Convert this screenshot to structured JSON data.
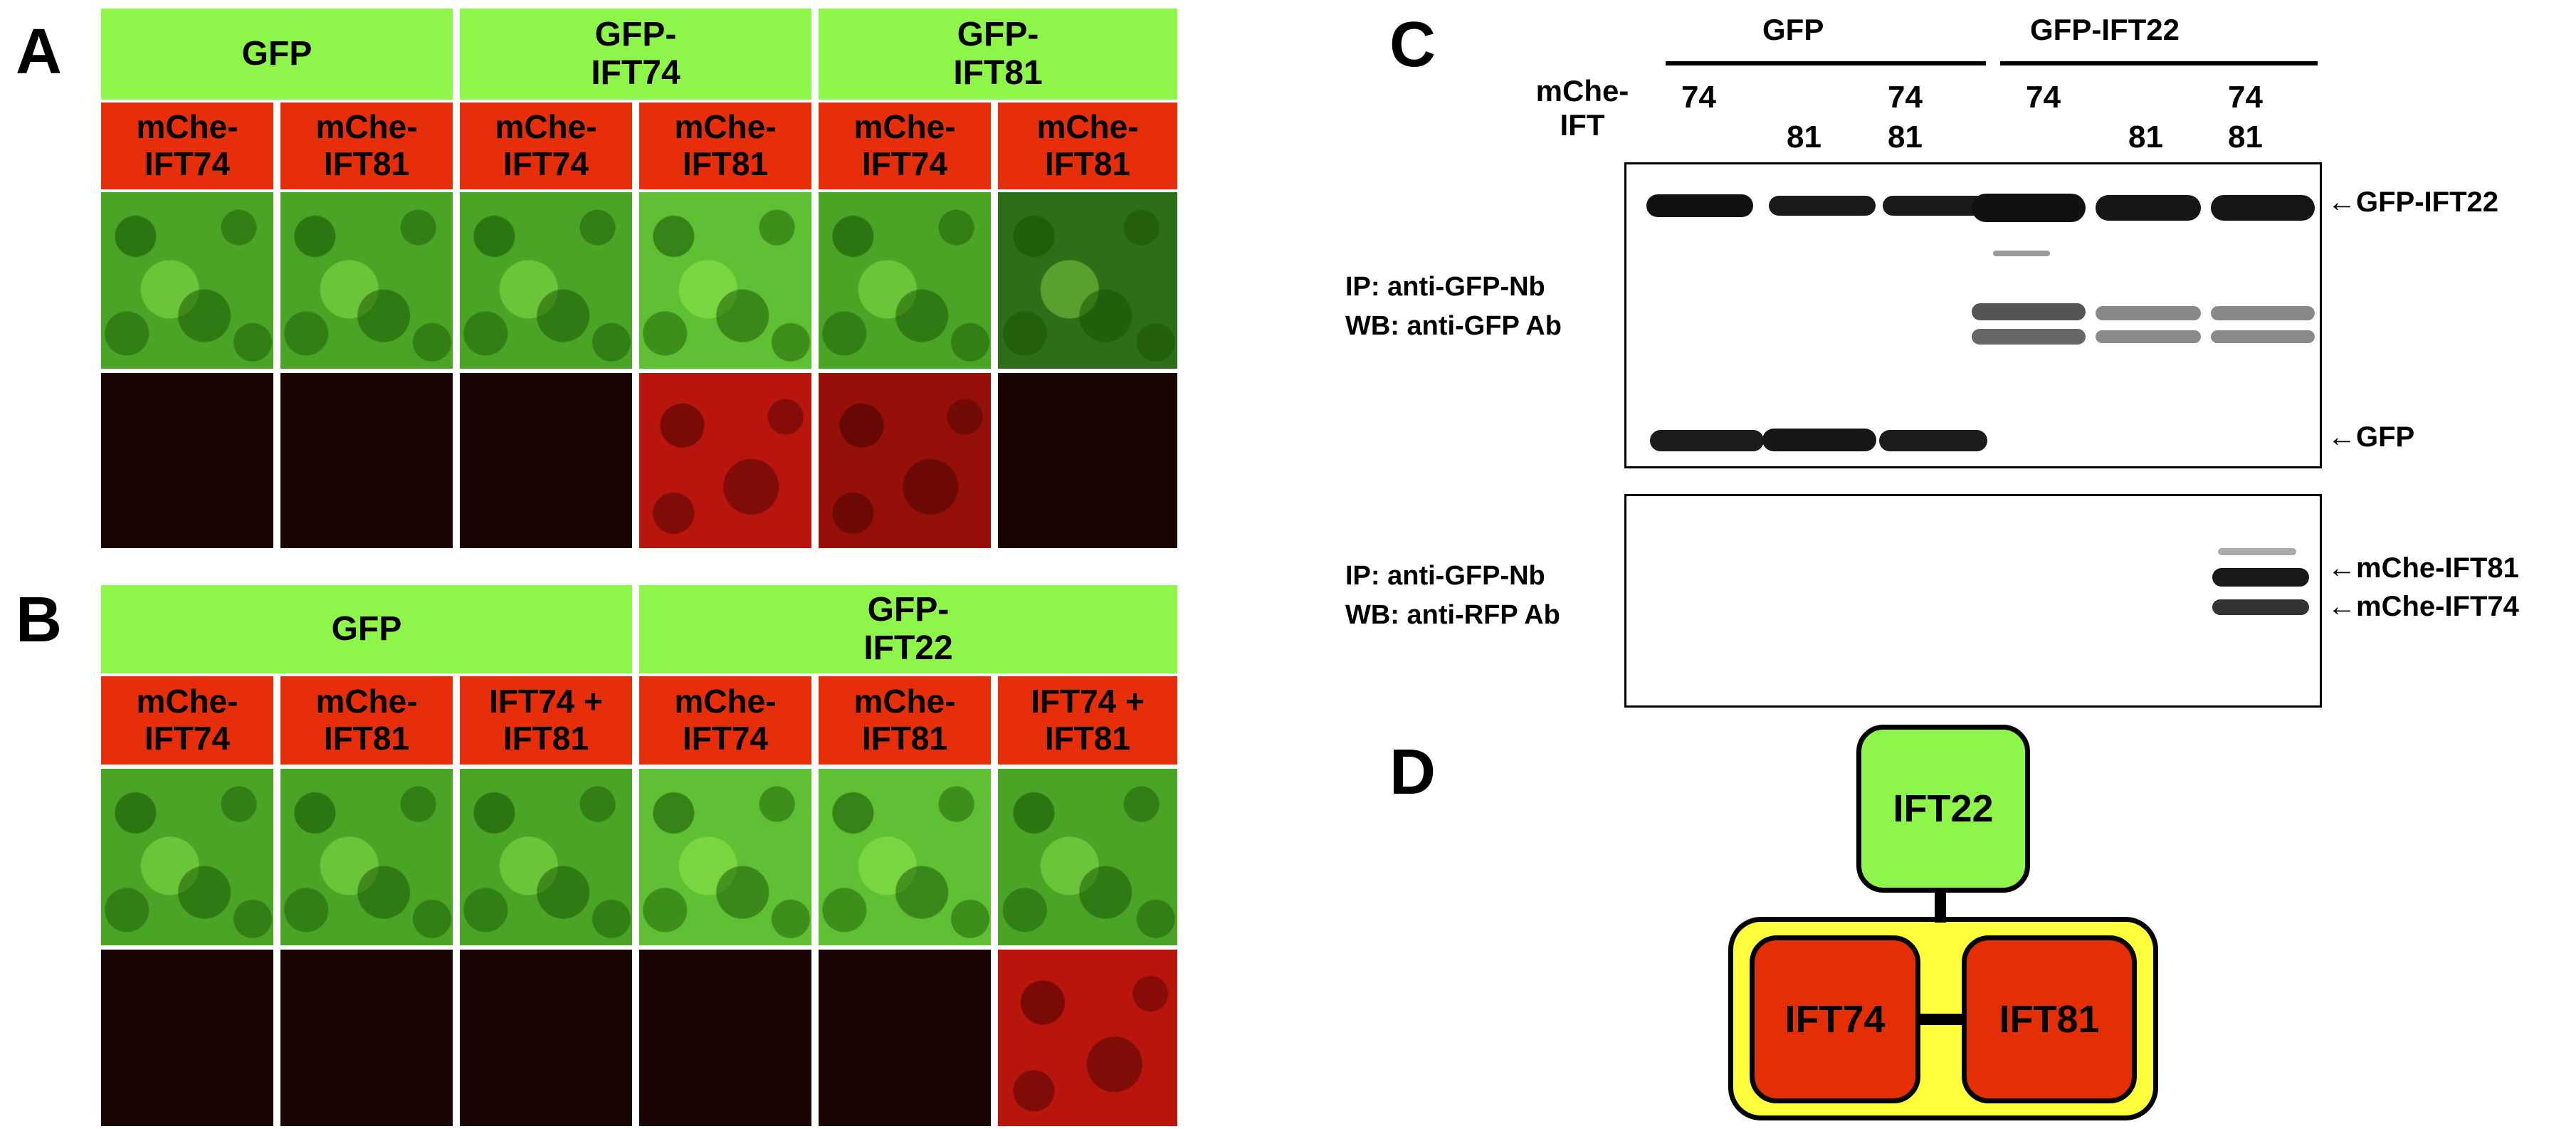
{
  "panels": {
    "a": "A",
    "b": "B",
    "c": "C",
    "d": "D"
  },
  "panel_a": {
    "headers": [
      "GFP",
      "GFP-\nIFT74",
      "GFP-\nIFT81"
    ],
    "subheaders": [
      "mChe-\nIFT74",
      "mChe-\nIFT81",
      "mChe-\nIFT74",
      "mChe-\nIFT81",
      "mChe-\nIFT74",
      "mChe-\nIFT81"
    ]
  },
  "panel_b": {
    "headers": [
      "GFP",
      "GFP-\nIFT22"
    ],
    "subheaders": [
      "mChe-\nIFT74",
      "mChe-\nIFT81",
      "IFT74 +\nIFT81",
      "mChe-\nIFT74",
      "mChe-\nIFT81",
      "IFT74 +\nIFT81"
    ]
  },
  "panel_c": {
    "group_labels": [
      "GFP",
      "GFP-IFT22"
    ],
    "row_label": "mChe-\nIFT",
    "lanes": [
      {
        "top": "74",
        "bottom": ""
      },
      {
        "top": "",
        "bottom": "81"
      },
      {
        "top": "74",
        "bottom": "81"
      },
      {
        "top": "74",
        "bottom": ""
      },
      {
        "top": "",
        "bottom": "81"
      },
      {
        "top": "74",
        "bottom": "81"
      }
    ],
    "blot1_label": "IP: anti-GFP-Nb\nWB: anti-GFP Ab",
    "blot2_label": "IP: anti-GFP-Nb\nWB: anti-RFP Ab",
    "band_labels": [
      "GFP-IFT22",
      "GFP",
      "mChe-IFT81",
      "mChe-IFT74"
    ]
  },
  "panel_d": {
    "top_box": "IFT22",
    "left_box": "IFT74",
    "right_box": "IFT81"
  }
}
